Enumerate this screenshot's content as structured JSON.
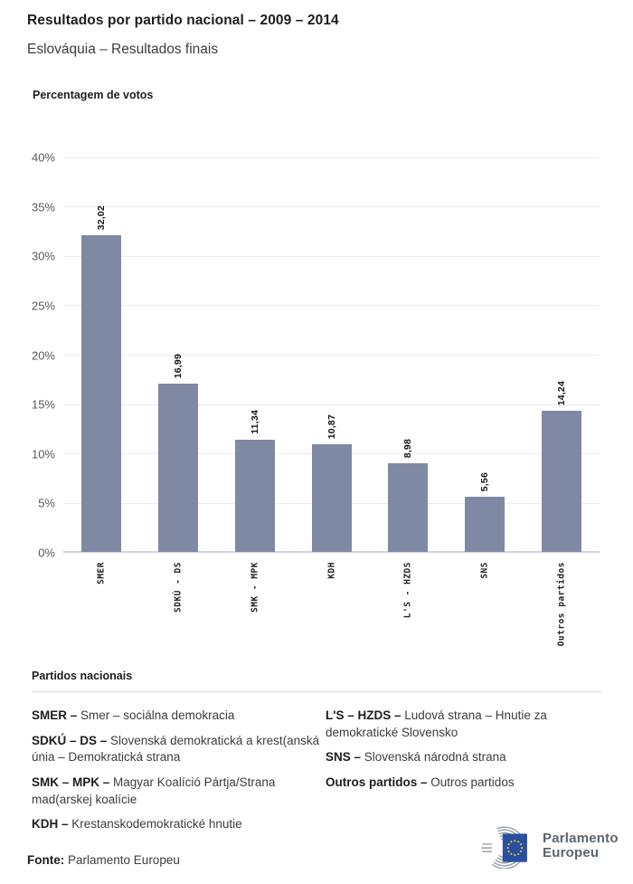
{
  "header": {
    "title": "Resultados por partido nacional – 2009 – 2014",
    "subtitle": "Eslováquia – Resultados finais"
  },
  "chart_data": {
    "type": "bar",
    "title": "Percentagem de votos",
    "categories": [
      "SMER",
      "SDKÚ - DS",
      "SMK - MPK",
      "KDH",
      "L'S - HZDS",
      "SNS",
      "Outros partidos"
    ],
    "values": [
      32.02,
      16.99,
      11.34,
      10.87,
      8.98,
      5.56,
      14.24
    ],
    "value_labels": [
      "32,02",
      "16,99",
      "11,34",
      "10,87",
      "8,98",
      "5,56",
      "14,24"
    ],
    "xlabel": "",
    "ylabel": "Percentagem de votos",
    "ylim": [
      0,
      40
    ],
    "ytick_step": 5,
    "ytick_labels": [
      "0%",
      "5%",
      "10%",
      "15%",
      "20%",
      "25%",
      "30%",
      "35%",
      "40%"
    ],
    "grid": true,
    "legend_position": "none",
    "bar_color": "#8089a4",
    "zero_line_color": "#ccd3e4"
  },
  "legend": {
    "heading": "Partidos nacionais",
    "columns": [
      [
        {
          "abbr": "SMER –",
          "desc": "Smer – sociálna demokracia"
        },
        {
          "abbr": "SDKÚ – DS –",
          "desc": "Slovenská demokratická a krest(anská únia – Demokratická strana"
        },
        {
          "abbr": "SMK – MPK –",
          "desc": "Magyar Koalíció Pártja/Strana mad(arskej koalície"
        },
        {
          "abbr": "KDH –",
          "desc": "Krestanskodemokratické hnutie"
        }
      ],
      [
        {
          "abbr": "L'S – HZDS –",
          "desc": "Ludová strana – Hnutie za demokratické Slovensko"
        },
        {
          "abbr": "SNS –",
          "desc": "Slovenská národná strana"
        },
        {
          "abbr": "Outros partidos –",
          "desc": "Outros partidos"
        }
      ]
    ]
  },
  "footer": {
    "source_label": "Fonte:",
    "source_value": "Parlamento Europeu",
    "logo_line1": "Parlamento",
    "logo_line2": "Europeu",
    "logo_colors": {
      "flag_blue": "#2a4f9f",
      "star_yellow": "#f8d12e",
      "hemicycle_gray": "#9aa1a9",
      "text_gray": "#5a646e"
    }
  }
}
